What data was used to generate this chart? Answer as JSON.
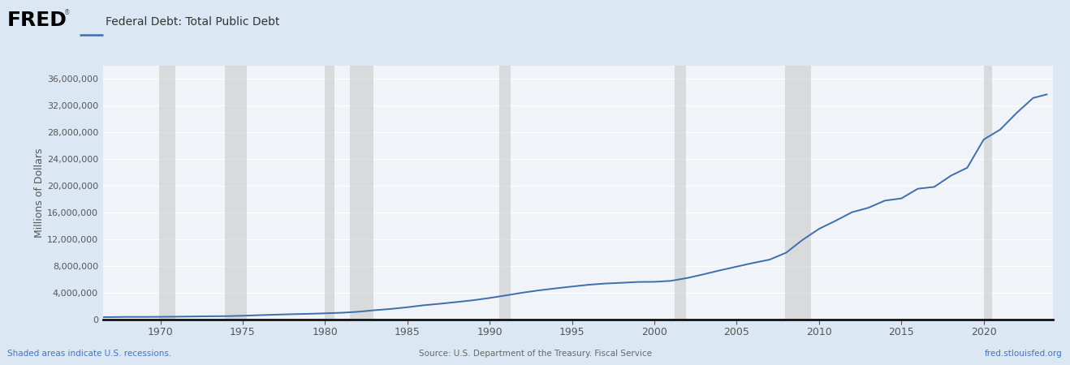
{
  "title": "Federal Debt: Total Public Debt",
  "ylabel": "Millions of Dollars",
  "background_color": "#dbe8f4",
  "plot_background_color": "#f0f4f9",
  "line_color": "#3d6fad",
  "line_width": 1.4,
  "ylim": [
    0,
    38000000
  ],
  "yticks": [
    0,
    4000000,
    8000000,
    12000000,
    16000000,
    20000000,
    24000000,
    28000000,
    32000000,
    36000000
  ],
  "xlim_start": 1966.5,
  "xlim_end": 2024.2,
  "xticks": [
    1970,
    1975,
    1980,
    1985,
    1990,
    1995,
    2000,
    2005,
    2010,
    2015,
    2020
  ],
  "recession_bands": [
    [
      1969.917,
      1970.917
    ],
    [
      1973.917,
      1975.25
    ],
    [
      1980.0,
      1980.583
    ],
    [
      1981.5,
      1982.917
    ],
    [
      1990.583,
      1991.25
    ],
    [
      2001.25,
      2001.917
    ],
    [
      2007.917,
      2009.5
    ],
    [
      2020.0,
      2020.5
    ]
  ],
  "recession_color": "#d0d0d0",
  "recession_alpha": 0.7,
  "footer_left": "Shaded areas indicate U.S. recessions.",
  "footer_center": "Source: U.S. Department of the Treasury. Fiscal Service",
  "footer_right": "fred.stlouisfed.org",
  "footer_color": "#4472c4",
  "footer_center_color": "#666666",
  "legend_line_color": "#3d6fad",
  "data_years": [
    1966,
    1967,
    1968,
    1969,
    1970,
    1971,
    1972,
    1973,
    1974,
    1975,
    1976,
    1977,
    1978,
    1979,
    1980,
    1981,
    1982,
    1983,
    1984,
    1985,
    1986,
    1987,
    1988,
    1989,
    1990,
    1991,
    1992,
    1993,
    1994,
    1995,
    1996,
    1997,
    1998,
    1999,
    2000,
    2001,
    2002,
    2003,
    2004,
    2005,
    2006,
    2007,
    2008,
    2009,
    2010,
    2011,
    2012,
    2013,
    2014,
    2015,
    2016,
    2017,
    2018,
    2019,
    2020,
    2021,
    2022,
    2023,
    2023.83
  ],
  "data_values": [
    328507,
    341337,
    369771,
    368225,
    382603,
    408176,
    435936,
    466291,
    483893,
    541925,
    628970,
    706398,
    776602,
    829467,
    907701,
    994845,
    1137345,
    1371164,
    1564110,
    1817423,
    2120282,
    2345956,
    2601104,
    2867800,
    3206290,
    3598178,
    4001787,
    4351044,
    4643307,
    4920586,
    5181465,
    5369206,
    5478189,
    5605523,
    5628700,
    5769881,
    6198401,
    6760014,
    7354657,
    7905300,
    8451350,
    8950744,
    9986082,
    11909829,
    13561623,
    14764222,
    16050921,
    16719434,
    17794328,
    18120106,
    19573445,
    19846675,
    21516058,
    22719401,
    26945391,
    28428919,
    30928911,
    33167000,
    33700000
  ]
}
